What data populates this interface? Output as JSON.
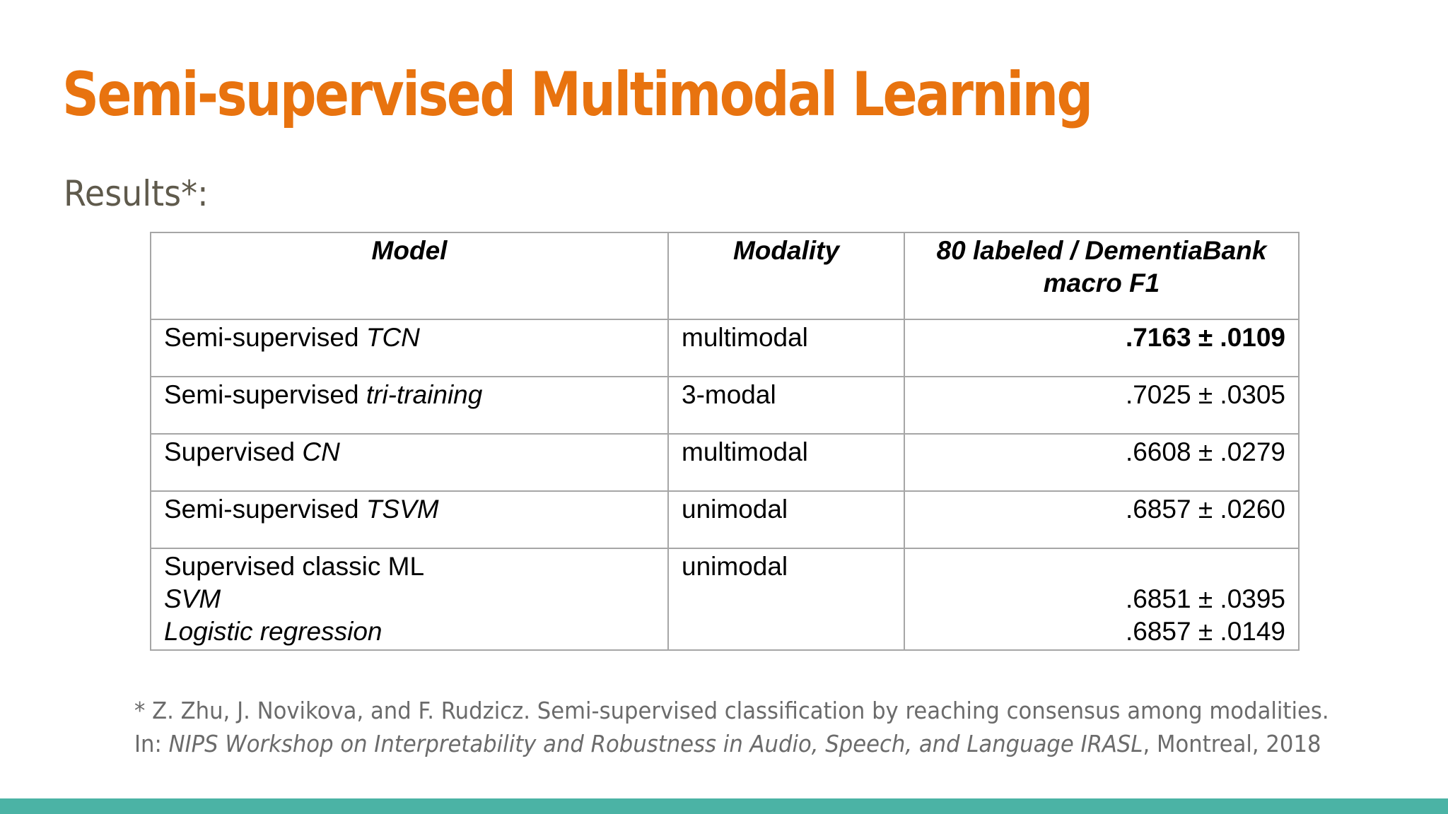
{
  "colors": {
    "title": "#e8730f",
    "subtitle": "#5f5a4c",
    "footnote": "#6b6b6b",
    "bottom_bar": "#4bb3a5",
    "table_border": "#a6a6a6"
  },
  "slide": {
    "title": "Semi-supervised Multimodal Learning",
    "subtitle": "Results*:"
  },
  "table": {
    "headers": {
      "model": "Model",
      "modality": "Modality",
      "f1_line1": "80 labeled / DementiaBank",
      "f1_line2": "macro F1"
    },
    "rows": [
      {
        "model_prefix": "Semi-supervised ",
        "model_italic": "TCN",
        "modality": "multimodal",
        "f1": ".7163 ± .0109"
      },
      {
        "model_prefix": "Semi-supervised ",
        "model_italic": "tri-training",
        "modality": "3-modal",
        "f1": ".7025 ± .0305"
      },
      {
        "model_prefix": "Supervised ",
        "model_italic": "CN",
        "modality": "multimodal",
        "f1": ".6608 ± .0279"
      },
      {
        "model_prefix": "Semi-supervised ",
        "model_italic": "TSVM",
        "modality": "unimodal",
        "f1": ".6857 ± .0260"
      }
    ],
    "classic_row": {
      "model_line1": "Supervised classic ML",
      "model_line2": "SVM",
      "model_line3": "Logistic regression",
      "modality": "unimodal",
      "f1_line2": ".6851 ± .0395",
      "f1_line3": ".6857 ± .0149"
    }
  },
  "footnote": {
    "line1": "* Z. Zhu, J. Novikova, and F. Rudzicz. Semi-supervised classification by reaching consensus among modalities.",
    "line2_prefix": "In: ",
    "line2_italic": "NIPS Workshop on Interpretability and Robustness in Audio, Speech, and Language IRASL",
    "line2_suffix": ", Montreal, 2018"
  }
}
